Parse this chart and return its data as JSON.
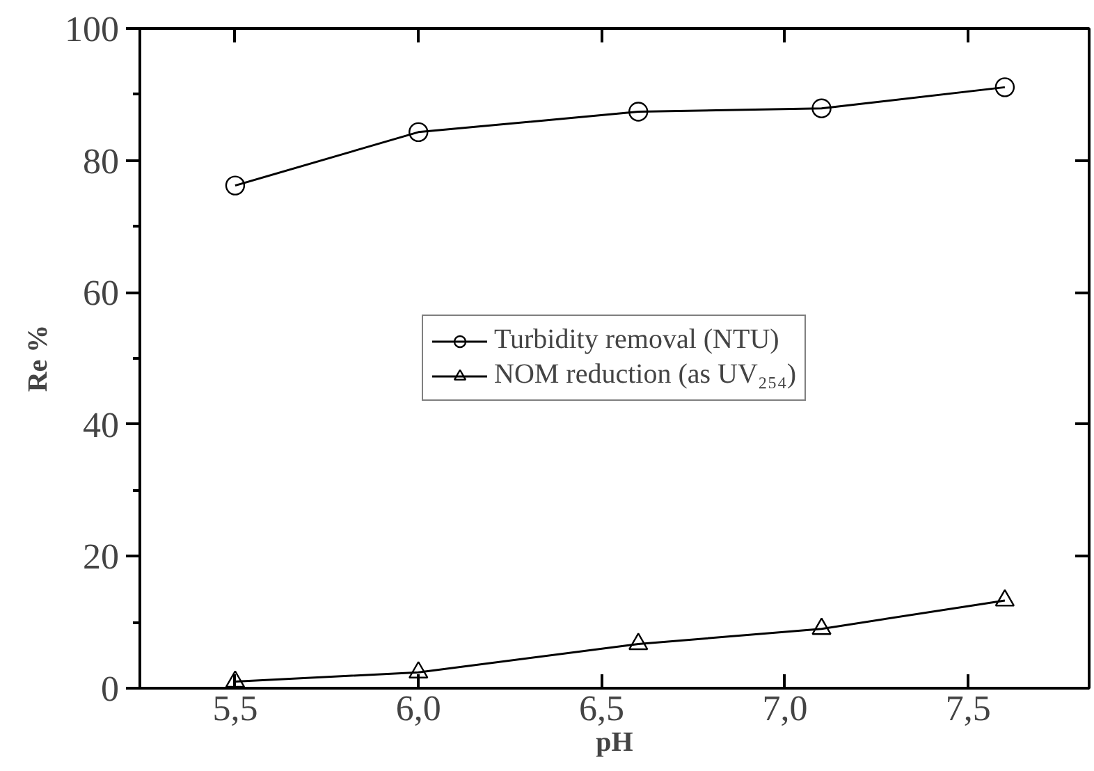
{
  "chart_data": {
    "type": "line",
    "xlabel": "pH",
    "ylabel": "Re %",
    "x": [
      5.5,
      6.0,
      6.6,
      7.1,
      7.6
    ],
    "series": [
      {
        "name": "Turbidity removal (NTU)",
        "color": "#000000",
        "marker": "circle",
        "values": [
          76.2,
          84.3,
          87.4,
          87.9,
          91.1
        ]
      },
      {
        "name": "NOM reduction (as UV₂₅₄)",
        "color": "#000000",
        "marker": "triangle",
        "values": [
          1.0,
          2.4,
          6.7,
          9.0,
          13.3
        ]
      }
    ],
    "xlim": [
      5.24,
      7.83
    ],
    "xticks": [
      {
        "value": 5.5,
        "label": "5,5"
      },
      {
        "value": 6.0,
        "label": "6,0"
      },
      {
        "value": 6.5,
        "label": "6,5"
      },
      {
        "value": 7.0,
        "label": "7,0"
      },
      {
        "value": 7.5,
        "label": "7,5"
      }
    ],
    "ylim": [
      0,
      100
    ],
    "yticks": [
      0,
      20,
      40,
      60,
      80,
      100
    ],
    "grid": false,
    "legend": "center",
    "line_style": "solid"
  }
}
